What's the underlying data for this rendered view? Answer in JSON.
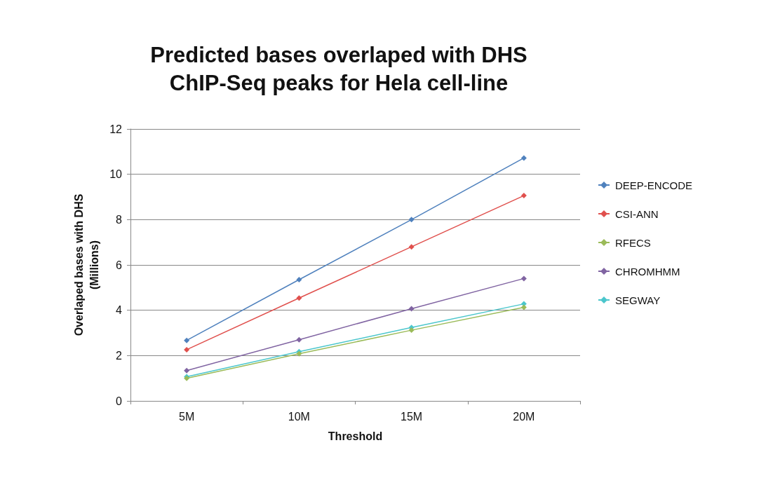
{
  "chart_data": {
    "type": "line",
    "title": "Predicted bases overlaped with DHS\nChIP-Seq peaks for Hela cell-line",
    "xlabel": "Threshold",
    "ylabel": "Overlaped bases with DHS\n(Millions)",
    "categories": [
      "5M",
      "10M",
      "15M",
      "20M"
    ],
    "series": [
      {
        "name": "DEEP-ENCODE",
        "color": "#4f81bd",
        "values": [
          2.67,
          5.35,
          8.0,
          10.72
        ]
      },
      {
        "name": "CSI-ANN",
        "color": "#e0504d",
        "values": [
          2.26,
          4.54,
          6.8,
          9.06
        ]
      },
      {
        "name": "RFECS",
        "color": "#9bbb59",
        "values": [
          1.0,
          2.08,
          3.12,
          4.13
        ]
      },
      {
        "name": "CHROMHMM",
        "color": "#8064a2",
        "values": [
          1.34,
          2.7,
          4.07,
          5.4
        ]
      },
      {
        "name": "SEGWAY",
        "color": "#4bc6cc",
        "values": [
          1.07,
          2.17,
          3.24,
          4.28
        ]
      }
    ],
    "ylim": [
      0,
      12
    ],
    "yticks": [
      0,
      2,
      4,
      6,
      8,
      10,
      12
    ],
    "grid": "y",
    "legend": "right",
    "marker": "diamond",
    "line_style": "solid"
  }
}
